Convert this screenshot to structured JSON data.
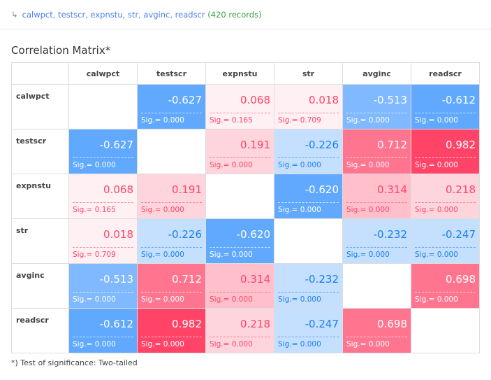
{
  "command": {
    "variables": "calwpct, testscr, expnstu, str, avginc, readscr",
    "records": "(420 records)"
  },
  "title": "Correlation Matrix*",
  "variables": [
    "calwpct",
    "testscr",
    "expnstu",
    "str",
    "avginc",
    "readscr"
  ],
  "matrix": [
    [
      null,
      [
        "-0.627",
        "0.000"
      ],
      [
        "0.068",
        "0.165"
      ],
      [
        "0.018",
        "0.709"
      ],
      [
        "-0.513",
        "0.000"
      ],
      [
        "-0.612",
        "0.000"
      ]
    ],
    [
      [
        "-0.627",
        "0.000"
      ],
      null,
      [
        "0.191",
        "0.000"
      ],
      [
        "-0.226",
        "0.000"
      ],
      [
        "0.712",
        "0.000"
      ],
      [
        "0.982",
        "0.000"
      ]
    ],
    [
      [
        "0.068",
        "0.165"
      ],
      [
        "0.191",
        "0.000"
      ],
      null,
      [
        "-0.620",
        "0.000"
      ],
      [
        "0.314",
        "0.000"
      ],
      [
        "0.218",
        "0.000"
      ]
    ],
    [
      [
        "0.018",
        "0.709"
      ],
      [
        "-0.226",
        "0.000"
      ],
      [
        "-0.620",
        "0.000"
      ],
      null,
      [
        "-0.232",
        "0.000"
      ],
      [
        "-0.247",
        "0.000"
      ]
    ],
    [
      [
        "-0.513",
        "0.000"
      ],
      [
        "0.712",
        "0.000"
      ],
      [
        "0.314",
        "0.000"
      ],
      [
        "-0.232",
        "0.000"
      ],
      null,
      [
        "0.698",
        "0.000"
      ]
    ],
    [
      [
        "-0.612",
        "0.000"
      ],
      [
        "0.982",
        "0.000"
      ],
      [
        "0.218",
        "0.000"
      ],
      [
        "-0.247",
        "0.000"
      ],
      [
        "0.698",
        "0.000"
      ],
      null
    ]
  ],
  "sig_prefix": "Sig.= ",
  "footnote": "*) Test of significance: Two-tailed",
  "colors": {
    "strong_neg": "#60a9ff",
    "mid_neg": "#80b9ff",
    "weak_neg": "#c5e0ff",
    "neg_text": "#1a7ef0",
    "tiny_pos": "#fff0f3",
    "weak_pos": "#ffd5dd",
    "mid_pos": "#ffc0cc",
    "strong_pos": "#ff7590",
    "very_strong_pos": "#ff4468",
    "pos_text": "#ff4466"
  }
}
